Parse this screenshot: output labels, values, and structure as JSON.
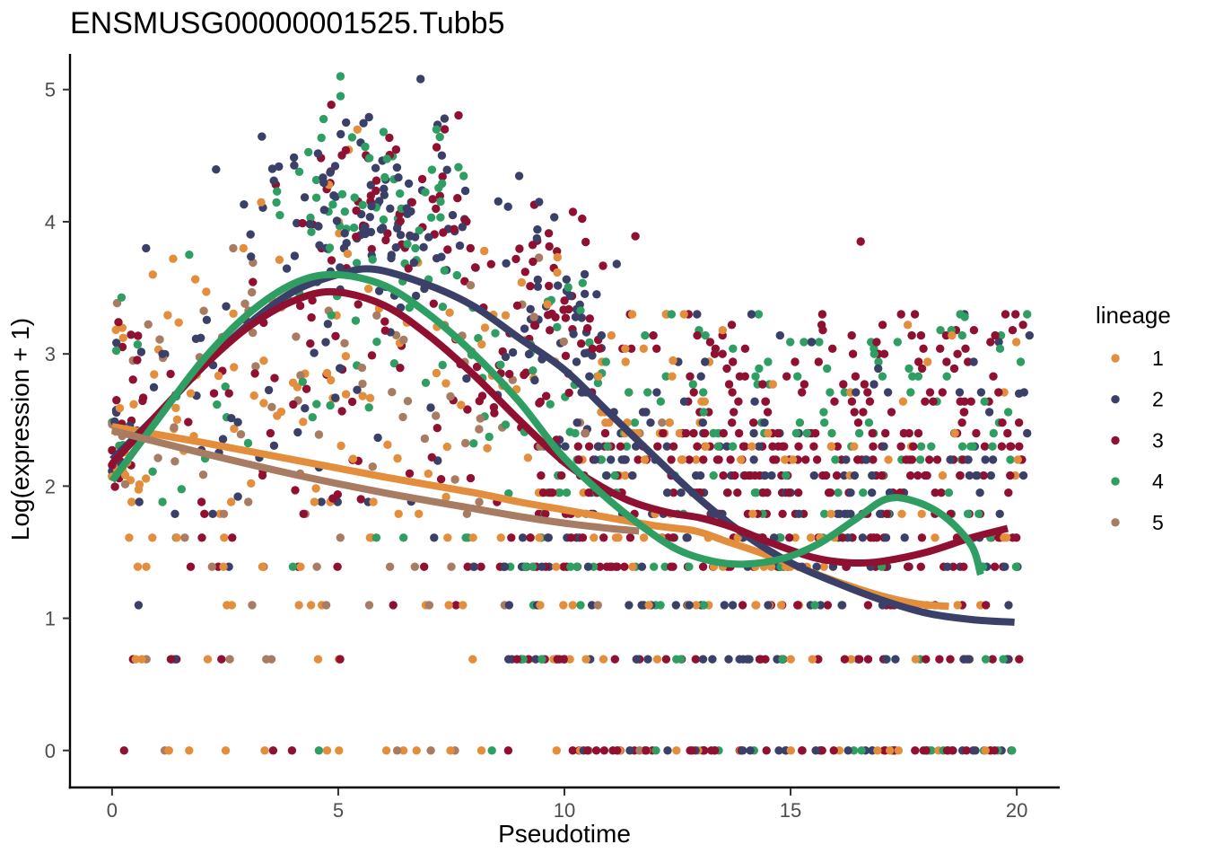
{
  "page": {
    "background": "#FFFFFF"
  },
  "chart_data": {
    "type": "scatter",
    "title": "ENSMUSG00000001525.Tubb5",
    "xlabel": "Pseudotime",
    "ylabel": "Log(expression + 1)",
    "x_ticks": [
      0,
      5,
      10,
      15,
      20
    ],
    "y_ticks": [
      0,
      1,
      2,
      3,
      4,
      5
    ],
    "x_domain": [
      -0.93,
      20.95
    ],
    "y_domain": [
      -0.28,
      5.27
    ],
    "grid": false,
    "axis_color": "#000000",
    "tick_color": "#333333",
    "tick_label_color": "#4d4d4d",
    "legend": {
      "title": "lineage",
      "position": "right",
      "items": [
        {
          "label": "1",
          "color": "#E28E3C"
        },
        {
          "label": "2",
          "color": "#3B4069"
        },
        {
          "label": "3",
          "color": "#8F1031"
        },
        {
          "label": "4",
          "color": "#2F9E62"
        },
        {
          "label": "5",
          "color": "#A87B63"
        }
      ]
    },
    "smoothers": [
      {
        "lineage": "1",
        "color": "#E28E3C",
        "stroke_width": 8,
        "points": [
          [
            0,
            2.45
          ],
          [
            2,
            2.33
          ],
          [
            4,
            2.2
          ],
          [
            6,
            2.07
          ],
          [
            8,
            1.95
          ],
          [
            9,
            1.88
          ],
          [
            10,
            1.82
          ],
          [
            11,
            1.76
          ],
          [
            12,
            1.7
          ],
          [
            12.9,
            1.66
          ],
          [
            13.6,
            1.58
          ],
          [
            14.3,
            1.5
          ],
          [
            15,
            1.41
          ],
          [
            16,
            1.28
          ],
          [
            17,
            1.17
          ],
          [
            17.8,
            1.11
          ],
          [
            18.5,
            1.09
          ]
        ]
      },
      {
        "lineage": "2",
        "color": "#3B4069",
        "stroke_width": 8,
        "points": [
          [
            0,
            2.2
          ],
          [
            1,
            2.54
          ],
          [
            2,
            2.9
          ],
          [
            3,
            3.22
          ],
          [
            4,
            3.47
          ],
          [
            5,
            3.6
          ],
          [
            5.8,
            3.64
          ],
          [
            7,
            3.52
          ],
          [
            8,
            3.36
          ],
          [
            9,
            3.12
          ],
          [
            10,
            2.88
          ],
          [
            11,
            2.55
          ],
          [
            12,
            2.22
          ],
          [
            13,
            1.9
          ],
          [
            14,
            1.63
          ],
          [
            15,
            1.42
          ],
          [
            16,
            1.27
          ],
          [
            17,
            1.14
          ],
          [
            18,
            1.04
          ],
          [
            19,
            0.99
          ],
          [
            19.95,
            0.97
          ]
        ]
      },
      {
        "lineage": "3",
        "color": "#8F1031",
        "stroke_width": 8,
        "points": [
          [
            0,
            2.17
          ],
          [
            1,
            2.54
          ],
          [
            2,
            2.9
          ],
          [
            3,
            3.2
          ],
          [
            4,
            3.4
          ],
          [
            4.9,
            3.47
          ],
          [
            6,
            3.37
          ],
          [
            7,
            3.14
          ],
          [
            8,
            2.84
          ],
          [
            9,
            2.5
          ],
          [
            10,
            2.18
          ],
          [
            10.8,
            2.0
          ],
          [
            11.5,
            1.88
          ],
          [
            12.3,
            1.8
          ],
          [
            13,
            1.76
          ],
          [
            13.7,
            1.69
          ],
          [
            14.5,
            1.58
          ],
          [
            15.5,
            1.46
          ],
          [
            16.3,
            1.42
          ],
          [
            17,
            1.43
          ],
          [
            18,
            1.5
          ],
          [
            19,
            1.61
          ],
          [
            19.8,
            1.68
          ]
        ]
      },
      {
        "lineage": "4",
        "color": "#2F9E62",
        "stroke_width": 8,
        "points": [
          [
            0,
            2.04
          ],
          [
            1,
            2.5
          ],
          [
            2,
            2.95
          ],
          [
            3,
            3.3
          ],
          [
            4,
            3.53
          ],
          [
            4.9,
            3.6
          ],
          [
            6,
            3.52
          ],
          [
            7,
            3.3
          ],
          [
            8,
            3.0
          ],
          [
            9,
            2.64
          ],
          [
            9.9,
            2.25
          ],
          [
            10.8,
            1.95
          ],
          [
            11.7,
            1.7
          ],
          [
            12.5,
            1.52
          ],
          [
            13.3,
            1.43
          ],
          [
            14,
            1.41
          ],
          [
            14.8,
            1.45
          ],
          [
            15.6,
            1.56
          ],
          [
            16.4,
            1.74
          ],
          [
            17.1,
            1.9
          ],
          [
            17.7,
            1.89
          ],
          [
            18.4,
            1.77
          ],
          [
            19,
            1.55
          ],
          [
            19.2,
            1.33
          ]
        ]
      },
      {
        "lineage": "5",
        "color": "#A87B63",
        "stroke_width": 8,
        "points": [
          [
            0,
            2.42
          ],
          [
            2,
            2.25
          ],
          [
            4,
            2.09
          ],
          [
            6,
            1.95
          ],
          [
            8,
            1.83
          ],
          [
            9,
            1.77
          ],
          [
            10,
            1.72
          ],
          [
            11,
            1.68
          ],
          [
            11.65,
            1.66
          ]
        ]
      }
    ],
    "scatter": {
      "seed": 20,
      "dot_radius": 4.7,
      "brown_x_max": 12.3,
      "groups": [
        {
          "name": "left-cloud",
          "n": 320,
          "x": {
            "type": "uniform",
            "min": 0.05,
            "max": 9.55
          },
          "y": {
            "type": "gauss",
            "mean": 2.78,
            "sd": 0.52,
            "min": 1.88,
            "max": 3.8
          },
          "weights": {
            "1": 0.26,
            "2": 0.17,
            "3": 0.24,
            "4": 0.15,
            "5": 0.18
          }
        },
        {
          "name": "top-blob",
          "n": 225,
          "x": {
            "type": "gauss",
            "mean": 5.9,
            "sd": 1.35,
            "min": 2.3,
            "max": 9.4
          },
          "y": {
            "type": "gauss",
            "mean": 4.08,
            "sd": 0.34,
            "min": 3.35,
            "max": 5.1
          },
          "weights": {
            "1": 0.03,
            "2": 0.39,
            "3": 0.32,
            "4": 0.25,
            "5": 0.01
          }
        },
        {
          "name": "mid-column",
          "n": 95,
          "x": {
            "type": "gauss",
            "mean": 9.95,
            "sd": 0.6,
            "min": 8.7,
            "max": 11.4
          },
          "y": {
            "type": "gauss",
            "mean": 3.2,
            "sd": 0.45,
            "min": 2.35,
            "max": 4.2
          },
          "weights": {
            "1": 0.06,
            "2": 0.44,
            "3": 0.36,
            "4": 0.12,
            "5": 0.02
          }
        },
        {
          "name": "zero-column",
          "n": 35,
          "x": {
            "type": "gauss",
            "mean": 0.15,
            "sd": 0.12,
            "min": 0,
            "max": 0.45
          },
          "y": {
            "type": "uniform",
            "min": 1.95,
            "max": 2.6
          },
          "weights": {
            "1": 0.28,
            "2": 0.2,
            "3": 0.2,
            "4": 0.16,
            "5": 0.16
          }
        },
        {
          "name": "left-rows",
          "n": 115,
          "x": {
            "type": "uniform",
            "min": 0.05,
            "max": 9.5
          },
          "y": {
            "type": "bands",
            "values": [
              0,
              0.69,
              1.1,
              1.39,
              1.61,
              1.79
            ],
            "bias": 1
          },
          "weights": {
            "1": 0.4,
            "2": 0.1,
            "3": 0.18,
            "4": 0.1,
            "5": 0.22
          }
        },
        {
          "name": "right-rows-low",
          "n": 300,
          "x": {
            "type": "uniform",
            "min": 8.6,
            "max": 20.15
          },
          "y": {
            "type": "bands",
            "values": [
              0.69,
              1.1,
              1.39,
              1.61
            ],
            "bias": 1
          },
          "weights": {
            "1": 0.15,
            "2": 0.3,
            "3": 0.4,
            "4": 0.12,
            "5": 0.03
          }
        },
        {
          "name": "right-rows-mid",
          "n": 330,
          "x": {
            "type": "uniform",
            "min": 9.4,
            "max": 20.15
          },
          "y": {
            "type": "bands",
            "values": [
              1.79,
              1.95,
              2.08,
              2.2,
              2.3
            ],
            "bias": 1
          },
          "weights": {
            "1": 0.13,
            "2": 0.27,
            "3": 0.42,
            "4": 0.15,
            "5": 0.03
          }
        },
        {
          "name": "right-zero-row",
          "n": 95,
          "x": {
            "type": "uniform",
            "min": 9.8,
            "max": 20.0
          },
          "y": {
            "type": "bands",
            "values": [
              0
            ],
            "bias": 1
          },
          "weights": {
            "1": 0.17,
            "2": 0.3,
            "3": 0.36,
            "4": 0.11,
            "5": 0.06
          }
        },
        {
          "name": "right-upper",
          "n": 195,
          "x": {
            "type": "uniform",
            "min": 12.8,
            "max": 20.35
          },
          "y": {
            "type": "bands",
            "values": [
              2.4,
              2.48,
              2.56,
              2.64,
              2.71,
              2.77,
              2.83,
              2.89,
              2.94,
              3.0,
              3.04,
              3.09,
              3.14,
              3.18,
              3.22,
              3.3
            ],
            "bias": 1.5
          },
          "weights": {
            "1": 0.06,
            "2": 0.13,
            "3": 0.54,
            "4": 0.25,
            "5": 0.02
          }
        },
        {
          "name": "mid-upper",
          "n": 85,
          "x": {
            "type": "uniform",
            "min": 10.2,
            "max": 13.2
          },
          "y": {
            "type": "bands",
            "values": [
              2.4,
              2.48,
              2.56,
              2.64,
              2.71,
              2.83,
              2.94,
              3.04,
              3.14,
              3.3
            ],
            "bias": 1.3
          },
          "weights": {
            "1": 0.28,
            "2": 0.24,
            "3": 0.28,
            "4": 0.16,
            "5": 0.04
          }
        }
      ],
      "extra_points": [
        [
          6.82,
          5.08,
          "2"
        ],
        [
          5.05,
          4.95,
          "4"
        ],
        [
          7.35,
          4.78,
          "2"
        ],
        [
          6.0,
          4.68,
          "4"
        ],
        [
          16.55,
          3.85,
          "3"
        ],
        [
          11.57,
          3.89,
          "3"
        ],
        [
          9.44,
          4.15,
          "2"
        ],
        [
          19.75,
          3.3,
          "3"
        ],
        [
          18.85,
          3.28,
          "4"
        ],
        [
          20.05,
          2.7,
          "2"
        ],
        [
          1.35,
          3.72,
          "1"
        ],
        [
          0.9,
          3.6,
          "1"
        ],
        [
          11.5,
          3.3,
          "1"
        ],
        [
          12.4,
          2.95,
          "1"
        ]
      ]
    }
  }
}
